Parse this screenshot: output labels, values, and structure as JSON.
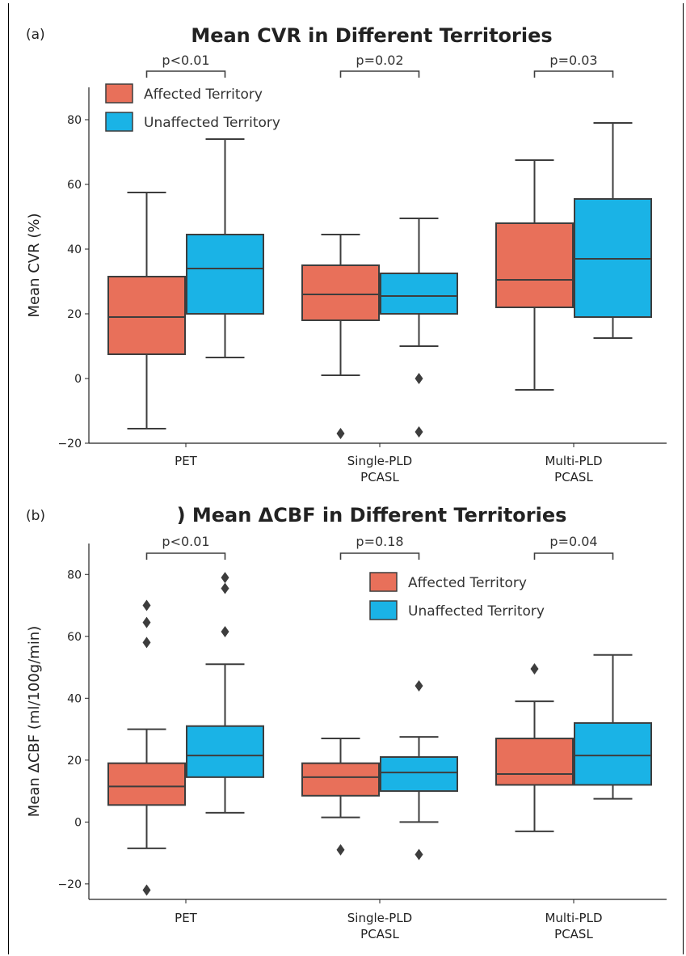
{
  "colors": {
    "affected": "#e8705a",
    "unaffected": "#1ab3e6",
    "line": "#3d3d3d"
  },
  "chart_data": [
    {
      "id": "a",
      "panel_label": "(a)",
      "type": "box",
      "title": "Mean CVR in Different Territories",
      "ylabel": "Mean CVR (%)",
      "ylim": [
        -20,
        90
      ],
      "yticks": [
        -20,
        0,
        20,
        40,
        60,
        80
      ],
      "categories": [
        "PET",
        "Single-PLD\nPCASL",
        "Multi-PLD\nPCASL"
      ],
      "legend": {
        "placement": "top-left",
        "entries": [
          "Affected Territory",
          "Unaffected Territory"
        ]
      },
      "pvalues": [
        "p<0.01",
        "p=0.02",
        "p=0.03"
      ],
      "series": [
        {
          "name": "Affected Territory",
          "boxes": [
            {
              "whisker_low": -15.5,
              "q1": 7.5,
              "median": 19,
              "q3": 31.5,
              "whisker_high": 57.5,
              "outliers": []
            },
            {
              "whisker_low": 1,
              "q1": 18,
              "median": 26,
              "q3": 35,
              "whisker_high": 44.5,
              "outliers": [
                -17
              ]
            },
            {
              "whisker_low": -3.5,
              "q1": 22,
              "median": 30.5,
              "q3": 48,
              "whisker_high": 67.5,
              "outliers": []
            }
          ]
        },
        {
          "name": "Unaffected Territory",
          "boxes": [
            {
              "whisker_low": 6.5,
              "q1": 20,
              "median": 34,
              "q3": 44.5,
              "whisker_high": 74,
              "outliers": []
            },
            {
              "whisker_low": 10,
              "q1": 20,
              "median": 25.5,
              "q3": 32.5,
              "whisker_high": 49.5,
              "outliers": [
                0,
                -16.5
              ]
            },
            {
              "whisker_low": 12.5,
              "q1": 19,
              "median": 37,
              "q3": 55.5,
              "whisker_high": 79,
              "outliers": []
            }
          ]
        }
      ]
    },
    {
      "id": "b",
      "panel_label": "(b)",
      "type": "box",
      "title": ") Mean ΔCBF in Different Territories",
      "ylabel": "Mean ΔCBF (ml/100g/min)",
      "ylim": [
        -25,
        90
      ],
      "yticks": [
        -20,
        0,
        20,
        40,
        60,
        80
      ],
      "categories": [
        "PET",
        "Single-PLD\nPCASL",
        "Multi-PLD\nPCASL"
      ],
      "legend": {
        "placement": "top-center",
        "entries": [
          "Affected Territory",
          "Unaffected Territory"
        ]
      },
      "pvalues": [
        "p<0.01",
        "p=0.18",
        "p=0.04"
      ],
      "series": [
        {
          "name": "Affected Territory",
          "boxes": [
            {
              "whisker_low": -8.5,
              "q1": 5.5,
              "median": 11.5,
              "q3": 19,
              "whisker_high": 30,
              "outliers": [
                70,
                64.5,
                58,
                -22
              ]
            },
            {
              "whisker_low": 1.5,
              "q1": 8.5,
              "median": 14.5,
              "q3": 19,
              "whisker_high": 27,
              "outliers": [
                -9
              ]
            },
            {
              "whisker_low": -3,
              "q1": 12,
              "median": 15.5,
              "q3": 27,
              "whisker_high": 39,
              "outliers": [
                49.5
              ]
            }
          ]
        },
        {
          "name": "Unaffected Territory",
          "boxes": [
            {
              "whisker_low": 3,
              "q1": 14.5,
              "median": 21.5,
              "q3": 31,
              "whisker_high": 51,
              "outliers": [
                79,
                75.5,
                61.5
              ]
            },
            {
              "whisker_low": 0,
              "q1": 10,
              "median": 16,
              "q3": 21,
              "whisker_high": 27.5,
              "outliers": [
                44,
                -10.5
              ]
            },
            {
              "whisker_low": 7.5,
              "q1": 12,
              "median": 21.5,
              "q3": 32,
              "whisker_high": 54,
              "outliers": []
            }
          ]
        }
      ]
    }
  ]
}
